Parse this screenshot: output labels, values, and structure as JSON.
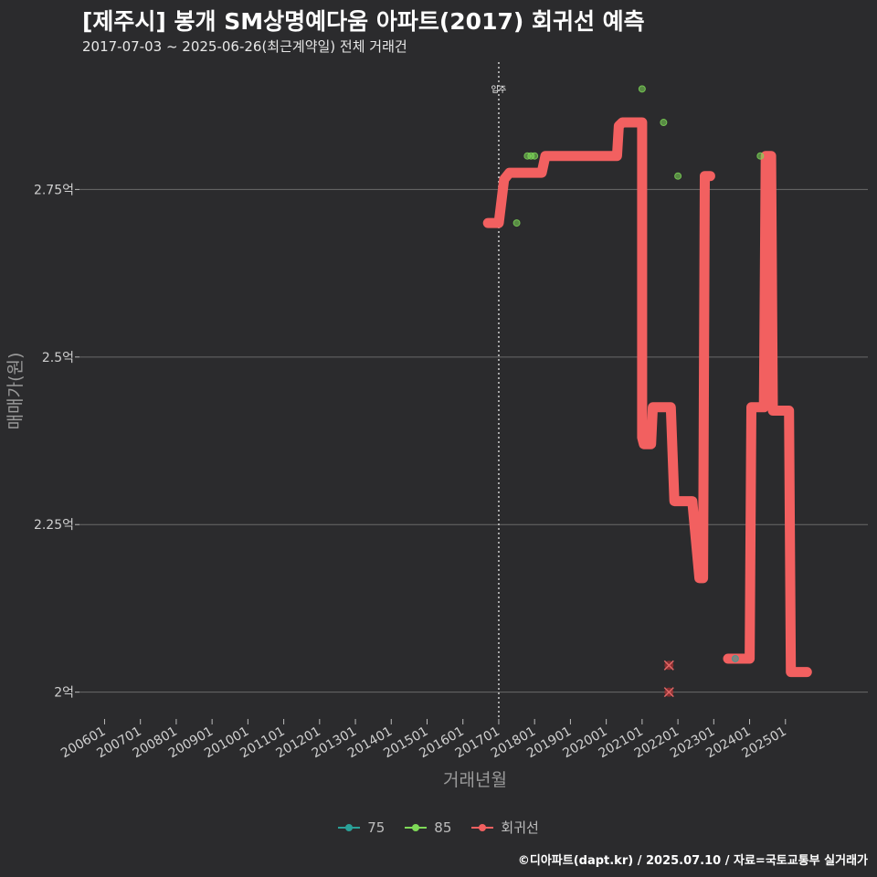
{
  "header": {
    "title": "[제주시] 봉개 SM상명예다움 아파트(2017) 회귀선 예측",
    "subtitle": "2017-07-03 ~ 2025-06-26(최근계약일) 전체 거래건"
  },
  "footer": "©디아파트(dapt.kr) / 2025.07.10 / 자료=국토교통부 실거래가",
  "colors": {
    "background": "#2b2b2d",
    "gridline": "#6a6a6a",
    "series_75": "#2aa198",
    "series_85": "#7ed957",
    "regression": "#f26060",
    "outlier": "#b03030"
  },
  "chart_data": {
    "type": "line",
    "xlabel": "거래년월",
    "ylabel": "매매가(원)",
    "x_ticks": [
      "200601",
      "200701",
      "200801",
      "200901",
      "201001",
      "201101",
      "201201",
      "201301",
      "201401",
      "201501",
      "201601",
      "201701",
      "201801",
      "201901",
      "202001",
      "202101",
      "202201",
      "202301",
      "202401",
      "202501"
    ],
    "x_range": [
      2005.3,
      2027.3
    ],
    "y_ticks": [
      {
        "value": 2.0,
        "label": "2억"
      },
      {
        "value": 2.25,
        "label": "2.25억"
      },
      {
        "value": 2.5,
        "label": "2.5억"
      },
      {
        "value": 2.75,
        "label": "2.75억"
      }
    ],
    "y_range": [
      1.96,
      2.94
    ],
    "vline": {
      "x": 2017.0,
      "label": "입주"
    },
    "series": [
      {
        "name": "75",
        "values": [
          [
            2023.6,
            2.05
          ]
        ]
      },
      {
        "name": "85",
        "values": [
          [
            2017.5,
            2.7
          ],
          [
            2017.8,
            2.8
          ],
          [
            2017.9,
            2.8
          ],
          [
            2018.0,
            2.8
          ],
          [
            2021.0,
            2.9
          ],
          [
            2021.6,
            2.85
          ],
          [
            2022.0,
            2.77
          ],
          [
            2024.3,
            2.8
          ]
        ]
      },
      {
        "name": "회귀선",
        "values": [
          [
            2016.7,
            2.7
          ],
          [
            2017.0,
            2.7
          ],
          [
            2017.15,
            2.765
          ],
          [
            2017.3,
            2.775
          ],
          [
            2018.2,
            2.775
          ],
          [
            2018.3,
            2.8
          ],
          [
            2018.75,
            2.8
          ],
          [
            2020.3,
            2.8
          ],
          [
            2020.35,
            2.845
          ],
          [
            2020.45,
            2.85
          ],
          [
            2021.0,
            2.85
          ],
          [
            2021.0,
            2.38
          ],
          [
            2021.05,
            2.37
          ],
          [
            2021.25,
            2.37
          ],
          [
            2021.3,
            2.425
          ],
          [
            2021.8,
            2.425
          ],
          [
            2021.9,
            2.285
          ],
          [
            2022.4,
            2.285
          ],
          [
            2022.6,
            2.17
          ],
          [
            2022.7,
            2.17
          ],
          [
            2022.75,
            2.77
          ],
          [
            2022.9,
            2.77
          ]
        ]
      },
      {
        "name": "회귀선",
        "values": [
          [
            2023.4,
            2.05
          ],
          [
            2024.0,
            2.05
          ],
          [
            2024.05,
            2.425
          ],
          [
            2024.4,
            2.425
          ],
          [
            2024.45,
            2.8
          ],
          [
            2024.6,
            2.8
          ],
          [
            2024.65,
            2.42
          ],
          [
            2025.1,
            2.42
          ],
          [
            2025.15,
            2.03
          ],
          [
            2025.6,
            2.03
          ]
        ]
      }
    ],
    "outliers": [
      [
        2021.75,
        2.04
      ],
      [
        2021.75,
        2.0
      ]
    ]
  },
  "legend": [
    {
      "label": "75",
      "color": "#2aa198"
    },
    {
      "label": "85",
      "color": "#7ed957"
    },
    {
      "label": "회귀선",
      "color": "#f26060"
    }
  ]
}
